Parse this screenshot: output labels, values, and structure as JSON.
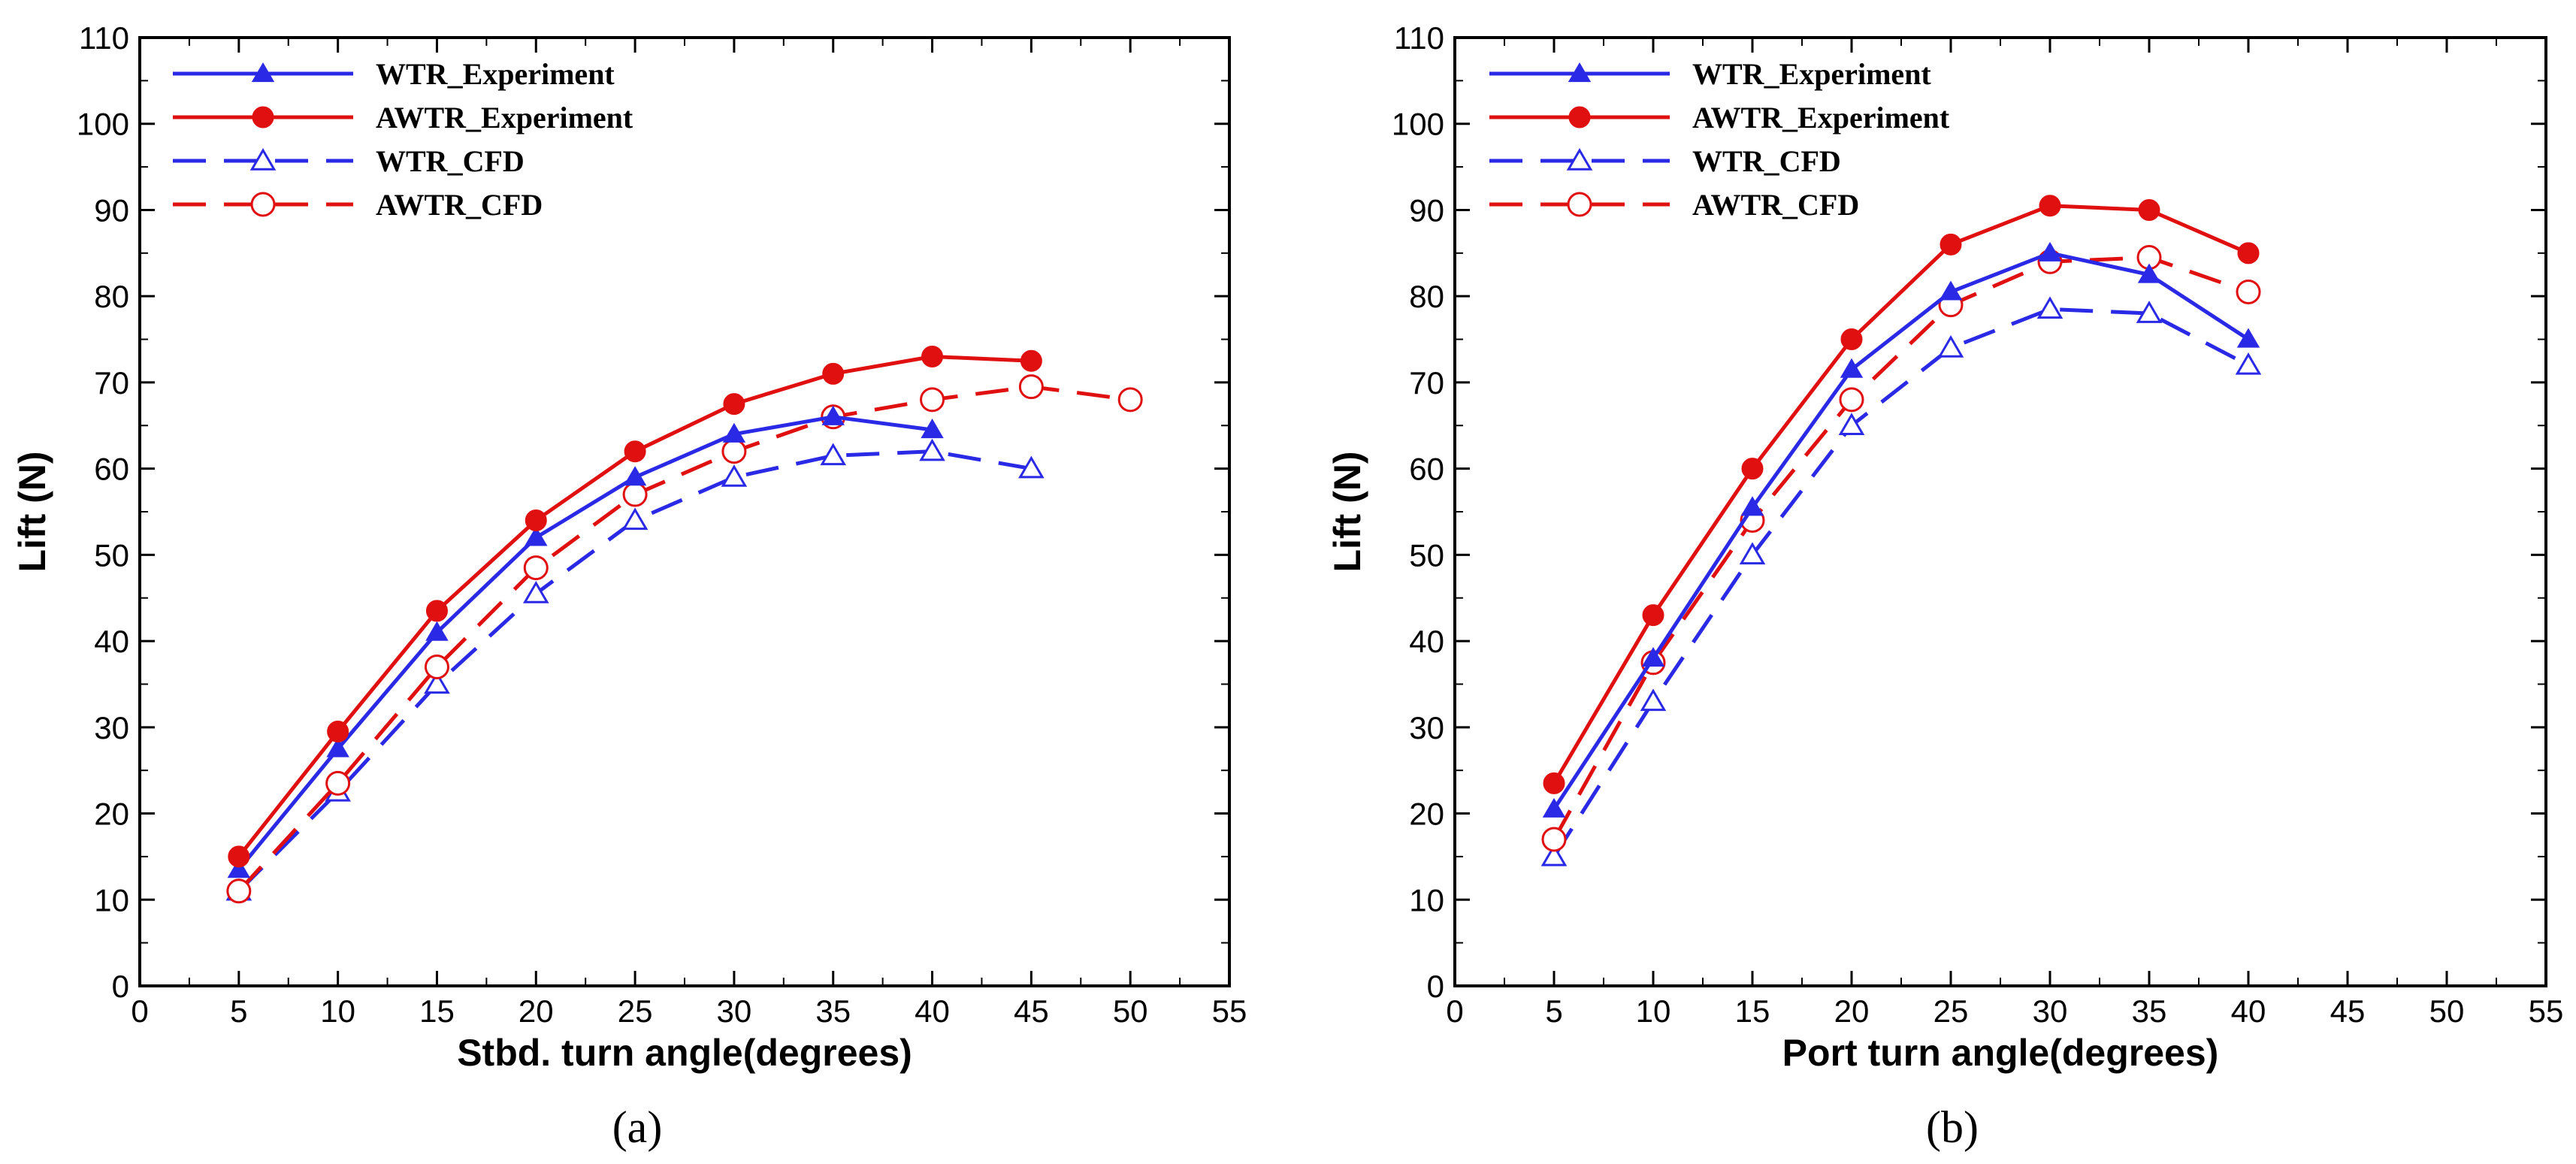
{
  "chart_data": [
    {
      "panel": "a",
      "type": "line",
      "caption": "(a)",
      "xlabel": "Stbd. turn angle(degrees)",
      "ylabel": "Lift (N)",
      "xlim": [
        0,
        55
      ],
      "ylim": [
        0,
        110
      ],
      "xticks": [
        0,
        5,
        10,
        15,
        20,
        25,
        30,
        35,
        40,
        45,
        50,
        55
      ],
      "yticks": [
        0,
        10,
        20,
        30,
        40,
        50,
        60,
        70,
        80,
        90,
        100,
        110
      ],
      "grid": false,
      "legend_position": "top-left",
      "series": [
        {
          "name": "WTR_Experiment",
          "color": "#2a2ae6",
          "line": "solid",
          "marker": "triangle-filled",
          "x": [
            5,
            10,
            15,
            20,
            25,
            30,
            35,
            40
          ],
          "y": [
            13.5,
            27.5,
            41,
            52,
            59,
            64,
            66,
            64.5
          ]
        },
        {
          "name": "AWTR_Experiment",
          "color": "#e01010",
          "line": "solid",
          "marker": "circle-filled",
          "x": [
            5,
            10,
            15,
            20,
            25,
            30,
            35,
            40,
            45
          ],
          "y": [
            15,
            29.5,
            43.5,
            54,
            62,
            67.5,
            71,
            73,
            72.5
          ]
        },
        {
          "name": "WTR_CFD",
          "color": "#2a2ae6",
          "line": "dashed",
          "marker": "triangle-open",
          "x": [
            5,
            10,
            15,
            20,
            25,
            30,
            35,
            40,
            45
          ],
          "y": [
            11,
            22.5,
            35,
            45.5,
            54,
            59,
            61.5,
            62,
            60
          ]
        },
        {
          "name": "AWTR_CFD",
          "color": "#e01010",
          "line": "dashed",
          "marker": "circle-open",
          "x": [
            5,
            10,
            15,
            20,
            25,
            30,
            35,
            40,
            45,
            50
          ],
          "y": [
            11,
            23.5,
            37,
            48.5,
            57,
            62,
            66,
            68,
            69.5,
            68
          ]
        }
      ]
    },
    {
      "panel": "b",
      "type": "line",
      "caption": "(b)",
      "xlabel": "Port turn angle(degrees)",
      "ylabel": "Lift (N)",
      "xlim": [
        0,
        55
      ],
      "ylim": [
        0,
        110
      ],
      "xticks": [
        0,
        5,
        10,
        15,
        20,
        25,
        30,
        35,
        40,
        45,
        50,
        55
      ],
      "yticks": [
        0,
        10,
        20,
        30,
        40,
        50,
        60,
        70,
        80,
        90,
        100,
        110
      ],
      "grid": false,
      "legend_position": "top-left",
      "series": [
        {
          "name": "WTR_Experiment",
          "color": "#2a2ae6",
          "line": "solid",
          "marker": "triangle-filled",
          "x": [
            5,
            10,
            15,
            20,
            25,
            30,
            35,
            40
          ],
          "y": [
            20.5,
            38,
            55.5,
            71.5,
            80.5,
            85,
            82.5,
            75
          ]
        },
        {
          "name": "AWTR_Experiment",
          "color": "#e01010",
          "line": "solid",
          "marker": "circle-filled",
          "x": [
            5,
            10,
            15,
            20,
            25,
            30,
            35,
            40
          ],
          "y": [
            23.5,
            43,
            60,
            75,
            86,
            90.5,
            90,
            85
          ]
        },
        {
          "name": "WTR_CFD",
          "color": "#2a2ae6",
          "line": "dashed",
          "marker": "triangle-open",
          "x": [
            5,
            10,
            15,
            20,
            25,
            30,
            35,
            40
          ],
          "y": [
            15,
            33,
            50,
            65,
            74,
            78.5,
            78,
            72
          ]
        },
        {
          "name": "AWTR_CFD",
          "color": "#e01010",
          "line": "dashed",
          "marker": "circle-open",
          "x": [
            5,
            10,
            15,
            20,
            25,
            30,
            35,
            40
          ],
          "y": [
            17,
            37.5,
            54,
            68,
            79,
            84,
            84.5,
            80.5
          ]
        }
      ]
    }
  ]
}
